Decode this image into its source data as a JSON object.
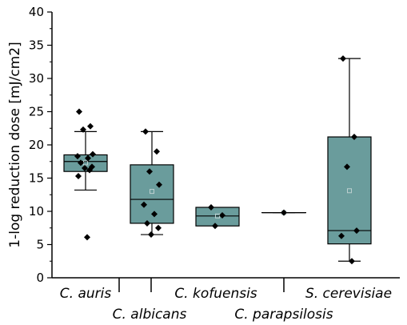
{
  "chart_data": {
    "type": "box",
    "ylabel": "1-log reduction dose [mJ/cm2]",
    "ylim": [
      0,
      40
    ],
    "yticks": [
      0,
      5,
      10,
      15,
      20,
      25,
      30,
      35,
      40
    ],
    "box_color": "#6a9c9c",
    "point_color": "#000000",
    "categories": [
      "C. auris",
      "C. albicans",
      "C. kofuensis",
      "C. parapsilosis",
      "S. cerevisiae"
    ],
    "boxes": [
      {
        "category": "C. auris",
        "q1": 16.0,
        "median": 17.5,
        "q3": 18.5,
        "whisker_low": 13.2,
        "whisker_high": 22.0,
        "mean": 17.3,
        "points": [
          25.0,
          22.8,
          22.3,
          18.6,
          18.3,
          18.0,
          17.3,
          16.7,
          16.5,
          16.2,
          15.3,
          6.1
        ]
      },
      {
        "category": "C. albicans",
        "q1": 8.2,
        "median": 11.8,
        "q3": 17.0,
        "whisker_low": 6.5,
        "whisker_high": 22.0,
        "mean": 13.0,
        "points": [
          22.0,
          19.0,
          16.0,
          14.0,
          11.0,
          9.6,
          8.2,
          7.5,
          6.5
        ]
      },
      {
        "category": "C. kofuensis",
        "q1": 7.8,
        "median": 9.3,
        "q3": 10.6,
        "whisker_low": 7.8,
        "whisker_high": 10.6,
        "mean": 9.3,
        "points": [
          10.6,
          9.4,
          7.8
        ]
      },
      {
        "category": "C. parapsilosis",
        "q1": 9.8,
        "median": 9.8,
        "q3": 9.8,
        "whisker_low": 9.8,
        "whisker_high": 9.8,
        "mean": 9.8,
        "points": [
          9.8
        ]
      },
      {
        "category": "S. cerevisiae",
        "q1": 5.1,
        "median": 7.1,
        "q3": 21.2,
        "whisker_low": 2.5,
        "whisker_high": 33.0,
        "mean": 13.1,
        "points": [
          33.0,
          21.2,
          16.7,
          7.1,
          6.3,
          2.5
        ]
      }
    ]
  }
}
